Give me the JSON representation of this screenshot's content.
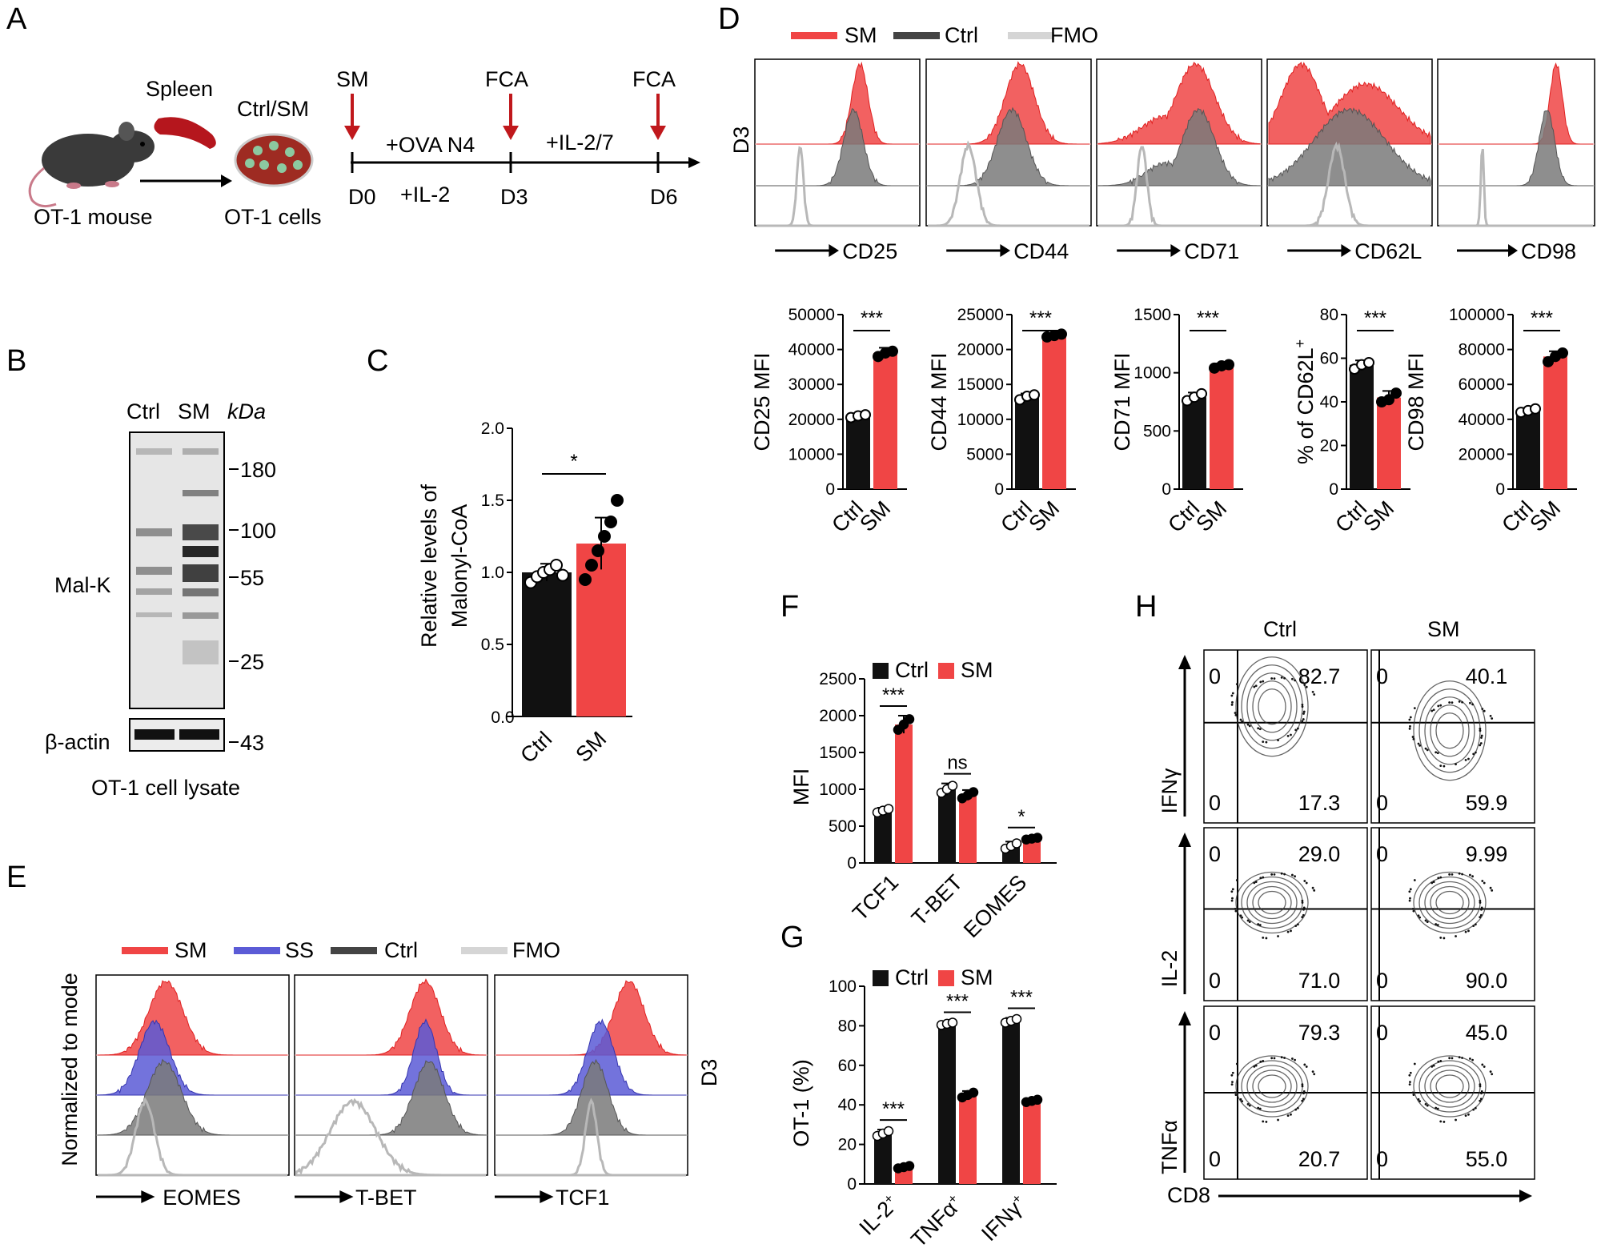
{
  "colors": {
    "sm": "#f04545",
    "ctrl": "#111111",
    "ss": "#5b5bd6",
    "fmo": "#cfcfcf",
    "hist_ctrl": "#7a7a7a",
    "arrow_red": "#c0181c"
  },
  "panel_labels": {
    "a": "A",
    "b": "B",
    "c": "C",
    "d": "D",
    "e": "E",
    "f": "F",
    "g": "G",
    "h": "H"
  },
  "panel_a": {
    "spleen": "Spleen",
    "mouse": "OT-1 mouse",
    "dish_top": "Ctrl/SM",
    "cells": "OT-1 cells",
    "sm": "SM",
    "fca1": "FCA",
    "fca2": "FCA",
    "ova": "+OVA N4",
    "il2": "+IL-2",
    "il27": "+IL-2/7",
    "d0": "D0",
    "d3": "D3",
    "d6": "D6"
  },
  "panel_b": {
    "ctrl": "Ctrl",
    "sm": "SM",
    "kda": "kDa",
    "malk": "Mal-K",
    "actin": "β-actin",
    "lysate": "OT-1 cell lysate",
    "markers": [
      "180",
      "100",
      "55",
      "25",
      "43"
    ]
  },
  "panel_c": {
    "ylabel1": "Relative levels of",
    "ylabel2": "Malonyl-CoA",
    "sig": "*",
    "ticks": [
      "0.0",
      "0.5",
      "1.0",
      "1.5",
      "2.0"
    ]
  },
  "panel_d": {
    "legend": [
      "SM",
      "Ctrl",
      "FMO"
    ],
    "day": "D3",
    "markers": [
      "CD25",
      "CD44",
      "CD71",
      "CD62L",
      "CD98"
    ]
  },
  "panel_d_bars": [
    {
      "ylabel": "CD25 MFI",
      "ticks": [
        "0",
        "10000",
        "20000",
        "30000",
        "40000",
        "50000"
      ]
    },
    {
      "ylabel": "CD44 MFI",
      "ticks": [
        "0",
        "5000",
        "10000",
        "15000",
        "20000",
        "25000"
      ]
    },
    {
      "ylabel": "CD71 MFI",
      "ticks": [
        "0",
        "500",
        "1000",
        "1500"
      ]
    },
    {
      "ylabel": "% of CD62L",
      "sup": "+",
      "ticks": [
        "0",
        "20",
        "40",
        "60",
        "80"
      ]
    },
    {
      "ylabel": "CD98 MFI",
      "ticks": [
        "0",
        "20000",
        "40000",
        "60000",
        "80000",
        "100000"
      ]
    }
  ],
  "panel_e": {
    "legend": [
      "SM",
      "SS",
      "Ctrl",
      "FMO"
    ],
    "ylabel": "Normalized to mode",
    "day": "D3",
    "markers": [
      "EOMES",
      "T-BET",
      "TCF1"
    ]
  },
  "panel_f": {
    "ylabel": "MFI",
    "legend": [
      "Ctrl",
      "SM"
    ],
    "categories": [
      "TCF1",
      "T-BET",
      "EOMES"
    ],
    "sig": [
      "***",
      "ns",
      "*"
    ],
    "ticks": [
      "0",
      "500",
      "1000",
      "1500",
      "2000",
      "2500"
    ]
  },
  "panel_g": {
    "ylabel": "OT-1 (%)",
    "legend": [
      "Ctrl",
      "SM"
    ],
    "categories": [
      "IL-2",
      "TNFα",
      "IFNγ"
    ],
    "sup": "+",
    "sig": [
      "***",
      "***",
      "***"
    ],
    "ticks": [
      "0",
      "20",
      "40",
      "60",
      "80",
      "100"
    ]
  },
  "panel_h": {
    "cols": [
      "Ctrl",
      "SM"
    ],
    "rows": [
      "IFNγ",
      "IL-2",
      "TNFα"
    ],
    "xlabel": "CD8",
    "quadrants": [
      [
        [
          "0",
          "82.7",
          "0",
          "17.3"
        ],
        [
          "0",
          "40.1",
          "0",
          "59.9"
        ]
      ],
      [
        [
          "0",
          "29.0",
          "0",
          "71.0"
        ],
        [
          "0",
          "9.99",
          "0",
          "90.0"
        ]
      ],
      [
        [
          "0",
          "79.3",
          "0",
          "20.7"
        ],
        [
          "0",
          "45.0",
          "0",
          "55.0"
        ]
      ]
    ]
  },
  "chart_data": [
    {
      "type": "bar",
      "title": "",
      "categories": [
        "Ctrl",
        "SM"
      ],
      "ylabel": "Relative levels of Malonyl-CoA",
      "ylim": [
        0,
        2.0
      ],
      "values": [
        1.0,
        1.2
      ],
      "error": [
        0.06,
        0.18
      ],
      "points": [
        [
          0.93,
          0.97,
          1.0,
          1.02,
          1.05,
          0.98
        ],
        [
          0.95,
          1.05,
          1.15,
          1.25,
          1.35,
          1.5
        ]
      ]
    },
    {
      "type": "bar",
      "categories": [
        "Ctrl",
        "SM"
      ],
      "ylabel": "CD25 MFI",
      "ylim": [
        0,
        50000
      ],
      "values": [
        21000,
        39000
      ],
      "error": [
        700,
        1500
      ],
      "points": [
        [
          20500,
          21000,
          21300
        ],
        [
          38000,
          39000,
          39500
        ]
      ]
    },
    {
      "type": "bar",
      "categories": [
        "Ctrl",
        "SM"
      ],
      "ylabel": "CD44 MFI",
      "ylim": [
        0,
        25000
      ],
      "values": [
        13200,
        22000
      ],
      "error": [
        500,
        300
      ],
      "points": [
        [
          12800,
          13300,
          13500
        ],
        [
          21800,
          22000,
          22200
        ]
      ]
    },
    {
      "type": "bar",
      "categories": [
        "Ctrl",
        "SM"
      ],
      "ylabel": "CD71 MFI",
      "ylim": [
        0,
        1500
      ],
      "values": [
        790,
        1060
      ],
      "error": [
        40,
        20
      ],
      "points": [
        [
          760,
          790,
          820
        ],
        [
          1040,
          1060,
          1070
        ]
      ]
    },
    {
      "type": "bar",
      "categories": [
        "Ctrl",
        "SM"
      ],
      "ylabel": "% of CD62L+",
      "ylim": [
        0,
        80
      ],
      "values": [
        57,
        42
      ],
      "error": [
        2,
        3
      ],
      "points": [
        [
          55,
          57,
          58
        ],
        [
          40,
          41,
          44
        ]
      ]
    },
    {
      "type": "bar",
      "categories": [
        "Ctrl",
        "SM"
      ],
      "ylabel": "CD98 MFI",
      "ylim": [
        0,
        100000
      ],
      "values": [
        45000,
        76000
      ],
      "error": [
        1500,
        3000
      ],
      "points": [
        [
          44000,
          45000,
          46000
        ],
        [
          73000,
          76000,
          78000
        ]
      ]
    },
    {
      "type": "bar",
      "categories": [
        "TCF1",
        "T-BET",
        "EOMES"
      ],
      "ylabel": "MFI",
      "ylim": [
        0,
        2500
      ],
      "series": [
        {
          "name": "Ctrl",
          "values": [
            710,
            1000,
            230
          ],
          "error": [
            40,
            80,
            60
          ]
        },
        {
          "name": "SM",
          "values": [
            1880,
            920,
            330
          ],
          "error": [
            120,
            70,
            20
          ]
        }
      ]
    },
    {
      "type": "bar",
      "categories": [
        "IL-2+",
        "TNFα+",
        "IFNγ+"
      ],
      "ylabel": "OT-1 (%)",
      "ylim": [
        0,
        100
      ],
      "series": [
        {
          "name": "Ctrl",
          "values": [
            25.5,
            81,
            82.5
          ],
          "error": [
            2,
            1,
            1.5
          ]
        },
        {
          "name": "SM",
          "values": [
            8.5,
            45,
            42
          ],
          "error": [
            1,
            2,
            1
          ]
        }
      ]
    }
  ]
}
